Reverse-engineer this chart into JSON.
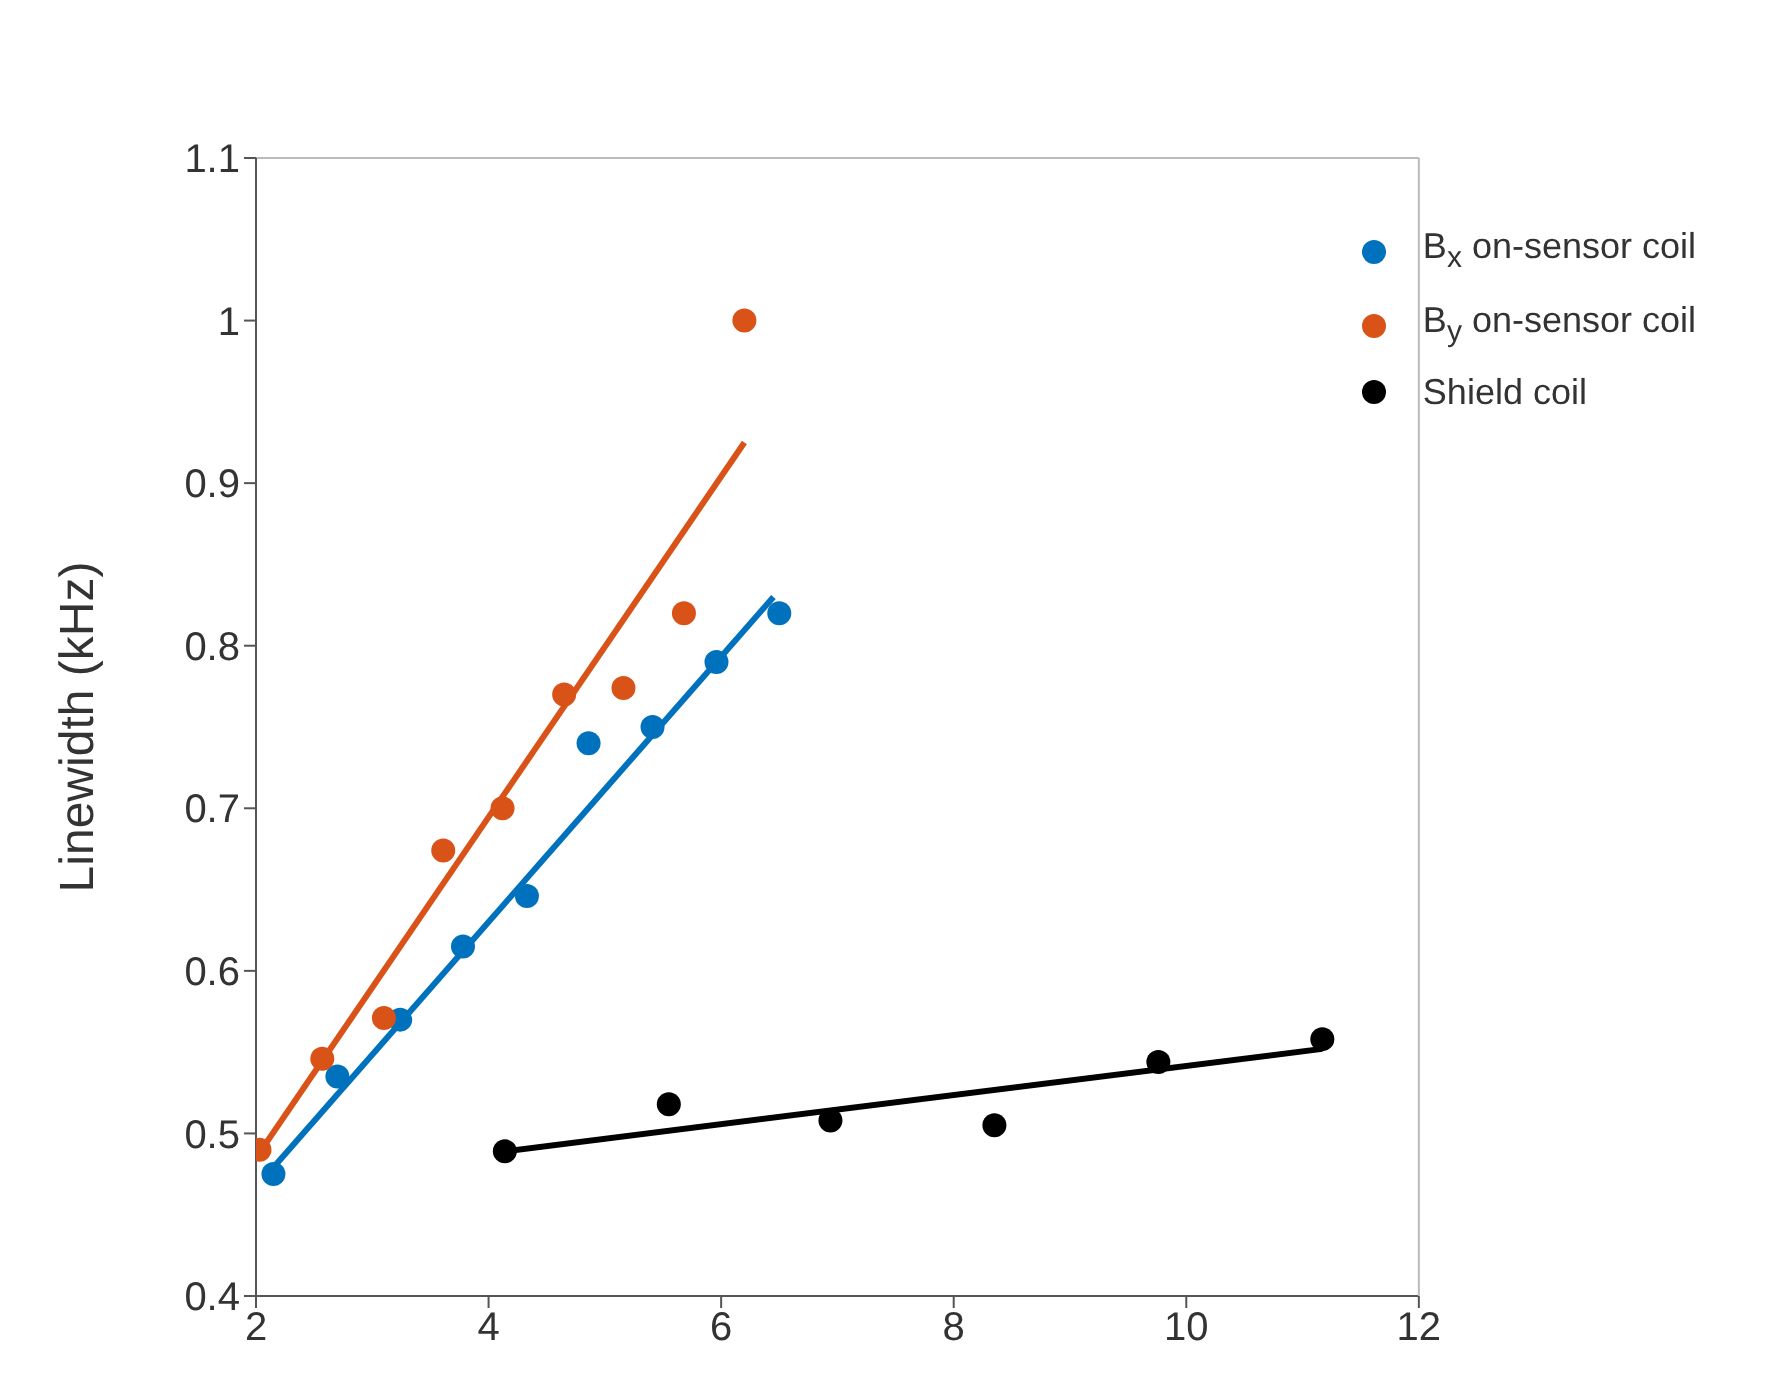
{
  "chart_data": {
    "type": "scatter",
    "ylabel": "Linewidth (kHz)",
    "xlim": [
      2,
      12
    ],
    "xticks": [
      2,
      4,
      6,
      8,
      10,
      12
    ],
    "ylim": [
      0.4,
      1.1
    ],
    "yticks": [
      0.4,
      0.5,
      0.6,
      0.7,
      0.8,
      0.9,
      1,
      1.1
    ],
    "grid": false,
    "legend": "top right",
    "series": [
      {
        "name": "B$_{x}$ on-sensor coil",
        "color": "#0072bd",
        "marker": "circle",
        "x": [
          2.15,
          2.7,
          3.24,
          3.78,
          4.33,
          4.86,
          5.41,
          5.96,
          6.5
        ],
        "values": [
          0.475,
          0.535,
          0.57,
          0.615,
          0.646,
          0.74,
          0.75,
          0.79,
          0.82
        ]
      },
      {
        "name": "B$_{y}$ on-sensor coil",
        "color": "#d95319",
        "marker": "circle",
        "x": [
          2.03,
          2.57,
          3.1,
          3.61,
          4.12,
          4.65,
          5.16,
          5.68,
          6.2
        ],
        "values": [
          0.49,
          0.546,
          0.571,
          0.674,
          0.7,
          0.77,
          0.774,
          0.82,
          1.0
        ]
      },
      {
        "name": "Shield coil",
        "color": "#000000",
        "marker": "circle",
        "x": [
          4.14,
          5.55,
          6.94,
          8.35,
          9.76,
          11.17
        ],
        "values": [
          0.489,
          0.518,
          0.508,
          0.505,
          0.544,
          0.558
        ]
      },
      {
        "type": "line",
        "color": "#0072bd",
        "marker": "none",
        "x": [
          2.1,
          6.45
        ],
        "values": [
          0.475,
          0.83
        ]
      },
      {
        "type": "line",
        "color": "#d95319",
        "marker": "none",
        "x": [
          2.0,
          6.2
        ],
        "values": [
          0.485,
          0.925
        ]
      },
      {
        "type": "line",
        "color": "#000000",
        "marker": "none",
        "x": [
          4.14,
          11.17
        ],
        "values": [
          0.489,
          0.552
        ]
      }
    ]
  }
}
